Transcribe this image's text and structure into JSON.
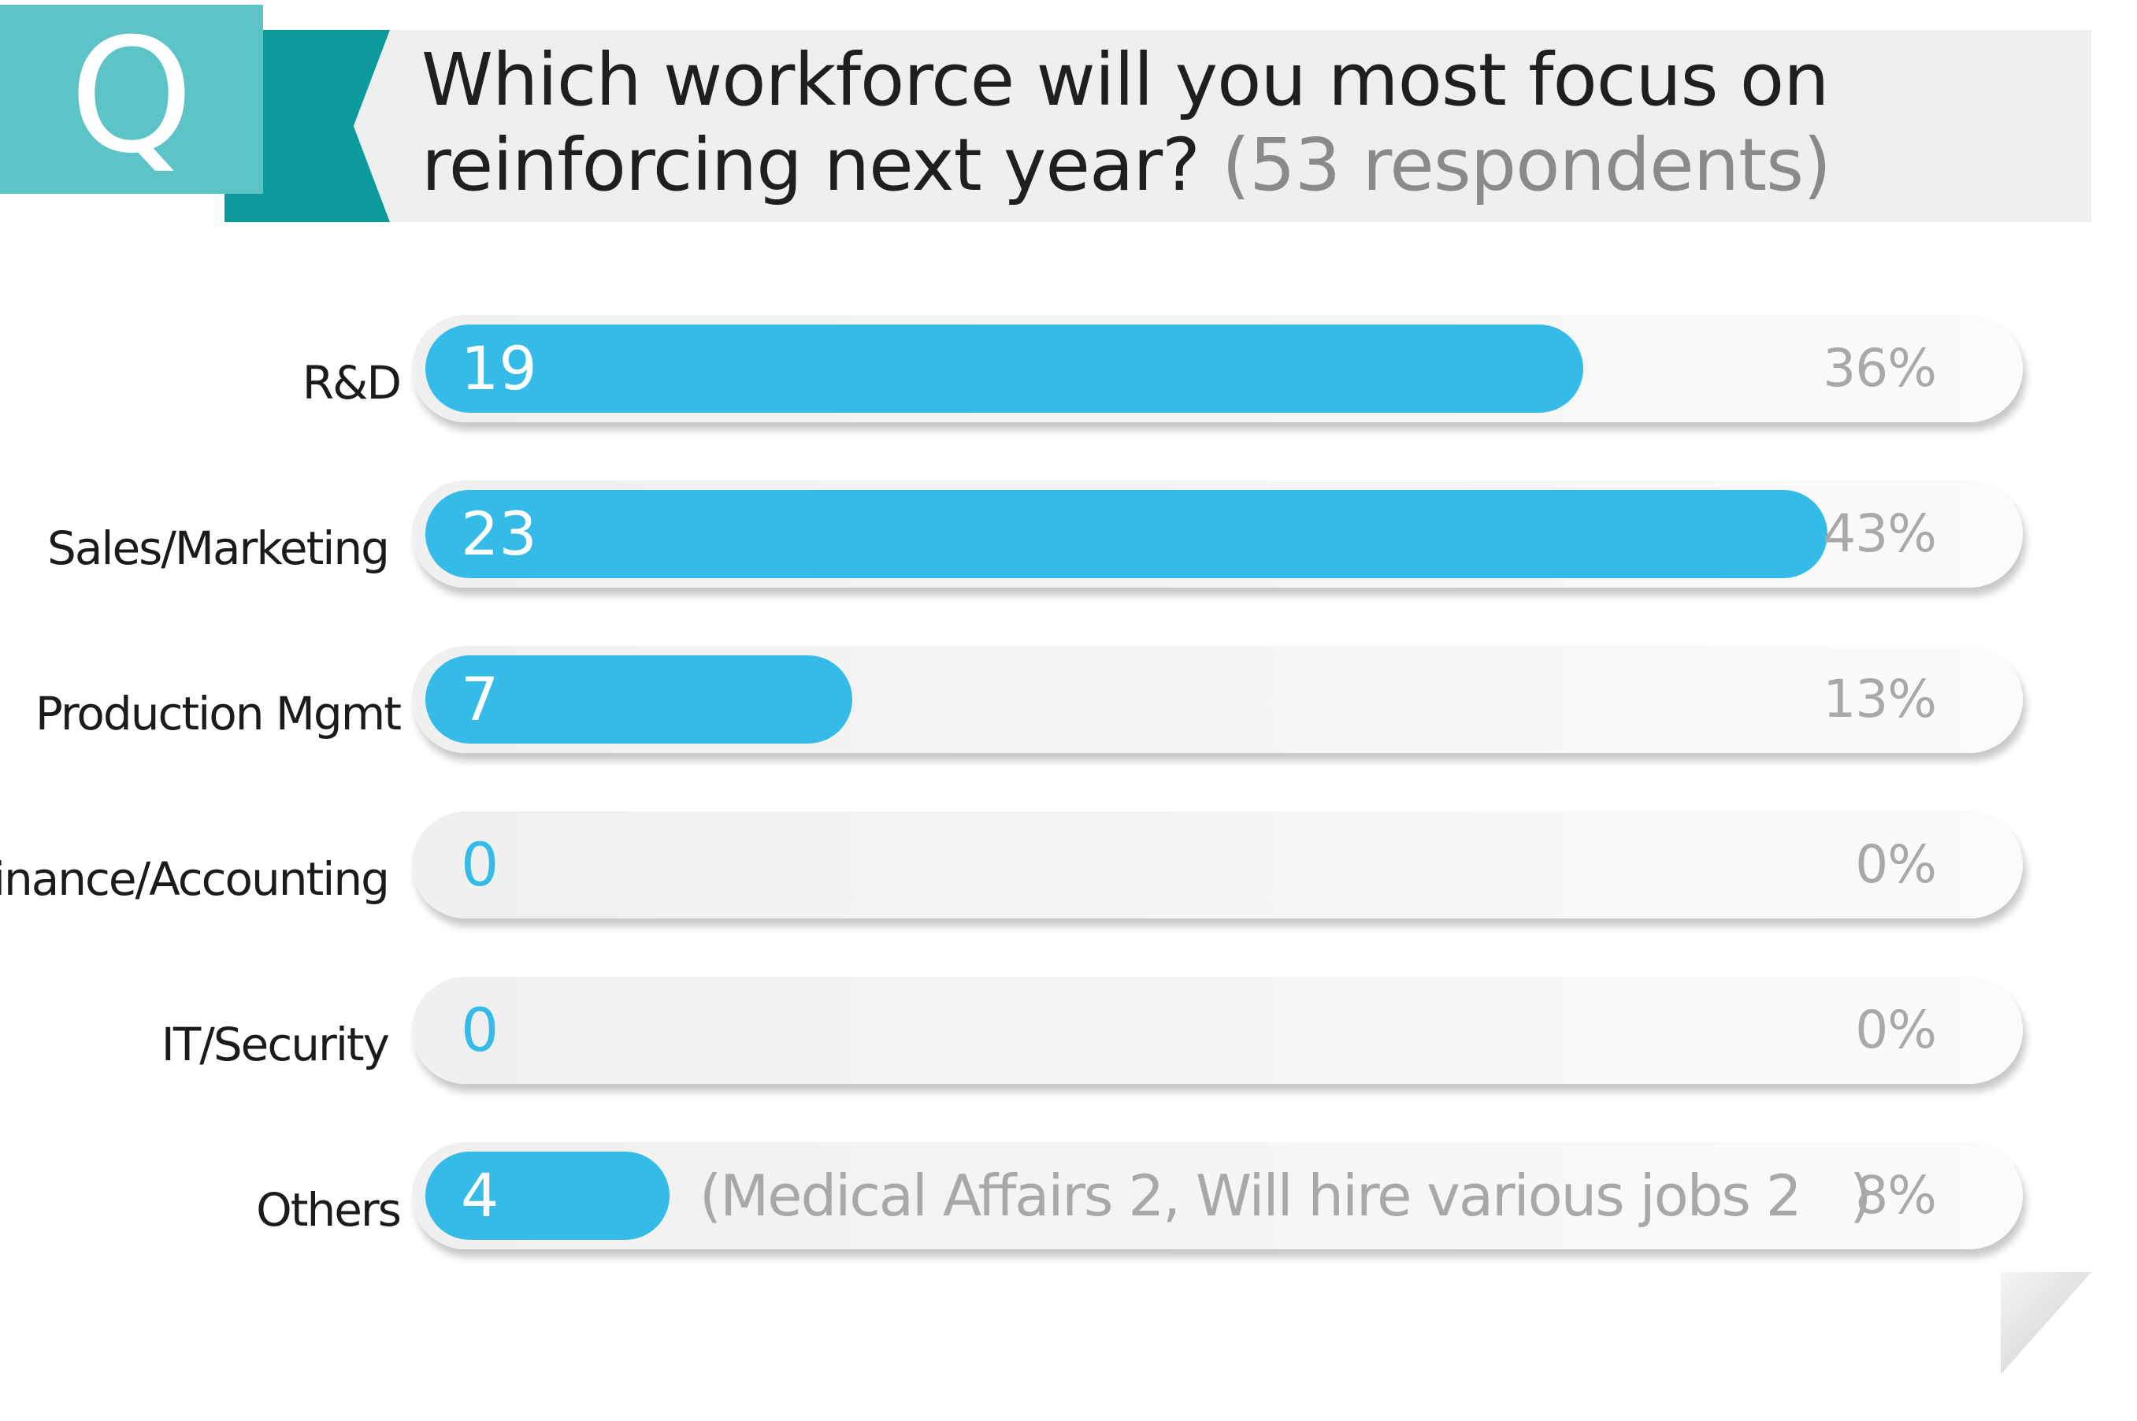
{
  "header": {
    "q_letter": "Q",
    "title_line1": "Which workforce will you most focus on",
    "title_line2": "reinforcing next year?",
    "respondents": "(53 respondents)"
  },
  "chart_data": {
    "type": "bar",
    "orientation": "horizontal",
    "title": "Which workforce will you most focus on reinforcing next year? (53 respondents)",
    "total": 53,
    "categories": [
      "R&D",
      "Sales/Marketing",
      "Production Mgmt",
      "Finance/Accounting",
      "IT/Security",
      "Others"
    ],
    "values": [
      19,
      23,
      7,
      0,
      0,
      4
    ],
    "value_labels": [
      "19",
      "23",
      "7",
      "0",
      "0",
      "4"
    ],
    "percent_labels": [
      "36%",
      "43%",
      "13%",
      "0%",
      "0%",
      "8%"
    ],
    "annotation": "(Medical Affairs 2, Will hire various jobs 2   )",
    "colors": {
      "bar": "#34bbe8",
      "track": "#f2f2f2",
      "q_box": "#5cc3c6",
      "q_box_dark": "#0d9a9c",
      "header_band": "#eeefef"
    }
  }
}
